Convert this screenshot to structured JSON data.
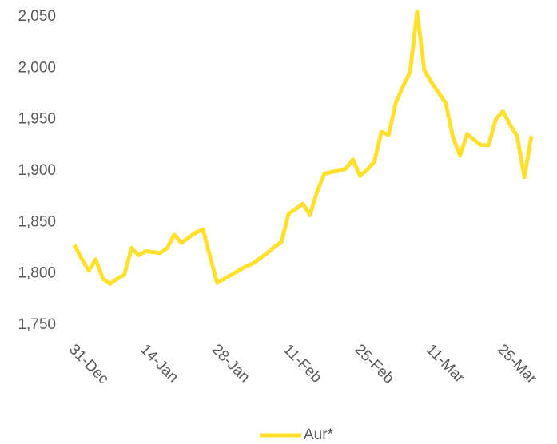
{
  "chart_data": {
    "type": "line",
    "categories": [
      "31-Dec",
      null,
      null,
      null,
      null,
      null,
      null,
      null,
      null,
      null,
      "14-Jan",
      null,
      null,
      null,
      null,
      null,
      null,
      null,
      null,
      null,
      "28-Jan",
      null,
      null,
      null,
      null,
      null,
      null,
      null,
      null,
      null,
      "11-Feb",
      null,
      null,
      null,
      null,
      null,
      null,
      null,
      null,
      null,
      "25-Feb",
      null,
      null,
      null,
      null,
      null,
      null,
      null,
      null,
      null,
      "11-Mar",
      null,
      null,
      null,
      null,
      null,
      null,
      null,
      null,
      null,
      "25-Mar",
      null,
      null,
      null,
      null
    ],
    "series": [
      {
        "name": "Aur*",
        "color": "#fde12d",
        "values": [
          1828,
          1815,
          1803,
          1814,
          1795,
          1790,
          1795,
          1799,
          1825,
          1818,
          1822,
          1821,
          1820,
          1825,
          1838,
          1830,
          1835,
          1840,
          1843,
          1817,
          1791,
          1795,
          1799,
          1803,
          1807,
          1810,
          1815,
          1820,
          1826,
          1831,
          1858,
          1863,
          1868,
          1857,
          1880,
          1897,
          1899,
          1900,
          1902,
          1911,
          1895,
          1901,
          1909,
          1938,
          1935,
          1966,
          1982,
          1996,
          2055,
          1998,
          1986,
          1976,
          1966,
          1933,
          1915,
          1936,
          1930,
          1925,
          1925,
          1950,
          1958,
          1945,
          1934,
          1894,
          1934
        ]
      }
    ],
    "ylim": [
      1750,
      2050
    ],
    "yticks": [
      {
        "value": 1750,
        "label": "1,750"
      },
      {
        "value": 1800,
        "label": "1,800"
      },
      {
        "value": 1850,
        "label": "1,850"
      },
      {
        "value": 1900,
        "label": "1,900"
      },
      {
        "value": 1950,
        "label": "1,950"
      },
      {
        "value": 2000,
        "label": "2,000"
      },
      {
        "value": 2050,
        "label": "2,050"
      }
    ],
    "grid": false,
    "legend": "bottom"
  }
}
